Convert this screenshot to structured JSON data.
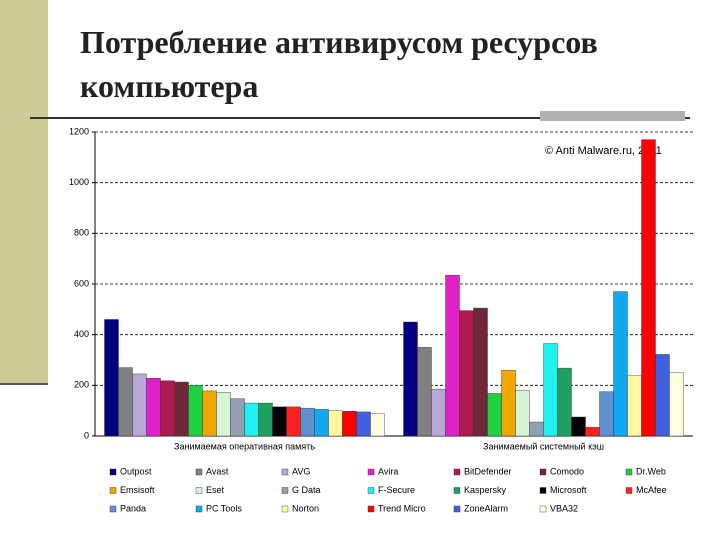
{
  "slide": {
    "title": "Потребление антивирусом ресурсов компьютера"
  },
  "chart_data": {
    "type": "bar",
    "annotation": "© Anti Malware.ru, 2011",
    "categories": [
      "Занимаемая оперативная память",
      "Занимаемый системный кэш"
    ],
    "ylim": [
      0,
      1200
    ],
    "yticks": [
      0,
      200,
      400,
      600,
      800,
      1000,
      1200
    ],
    "grid": true,
    "series": [
      {
        "name": "Outpost",
        "color": "#000080",
        "values": [
          460,
          450
        ]
      },
      {
        "name": "Avast",
        "color": "#808080",
        "values": [
          270,
          350
        ]
      },
      {
        "name": "AVG",
        "color": "#b8a8d8",
        "values": [
          245,
          185
        ]
      },
      {
        "name": "Avira",
        "color": "#e020c8",
        "values": [
          228,
          635
        ]
      },
      {
        "name": "BitDefender",
        "color": "#b01850",
        "values": [
          218,
          495
        ]
      },
      {
        "name": "Comodo",
        "color": "#702838",
        "values": [
          213,
          505
        ]
      },
      {
        "name": "Dr.Web",
        "color": "#20d040",
        "values": [
          200,
          168
        ]
      },
      {
        "name": "Emsisoft",
        "color": "#f0a800",
        "values": [
          178,
          260
        ]
      },
      {
        "name": "Eset",
        "color": "#d8f4d8",
        "values": [
          172,
          180
        ]
      },
      {
        "name": "G Data",
        "color": "#90a0b0",
        "values": [
          147,
          55
        ]
      },
      {
        "name": "F-Secure",
        "color": "#20f0f0",
        "values": [
          130,
          365
        ]
      },
      {
        "name": "Kaspersky",
        "color": "#20a060",
        "values": [
          130,
          268
        ]
      },
      {
        "name": "Microsoft",
        "color": "#000000",
        "values": [
          115,
          75
        ]
      },
      {
        "name": "McAfee",
        "color": "#ff2020",
        "values": [
          115,
          35
        ]
      },
      {
        "name": "Panda",
        "color": "#6090d0",
        "values": [
          110,
          175
        ]
      },
      {
        "name": "PC Tools",
        "color": "#10a8f0",
        "values": [
          105,
          570
        ]
      },
      {
        "name": "Norton",
        "color": "#fff8a0",
        "values": [
          100,
          238
        ]
      },
      {
        "name": "Trend Micro",
        "color": "#ff0000",
        "values": [
          98,
          1170
        ]
      },
      {
        "name": "ZoneAlarm",
        "color": "#4060e0",
        "values": [
          95,
          322
        ]
      },
      {
        "name": "VBA32",
        "color": "#ffffe0",
        "values": [
          88,
          250
        ]
      }
    ]
  }
}
